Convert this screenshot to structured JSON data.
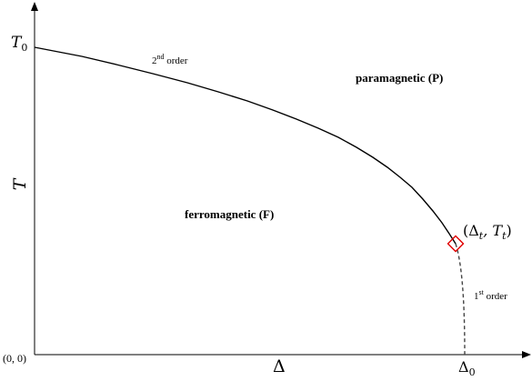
{
  "labels": {
    "t0": "T",
    "t0_sub": "0",
    "y_axis": "T",
    "origin": "(0, 0)",
    "x_axis": "Δ",
    "delta0": "Δ",
    "delta0_sub": "0",
    "second_order_num": "2",
    "second_order_sup": "nd",
    "second_order_text": " order",
    "first_order_num": "1",
    "first_order_sup": "st",
    "first_order_text": " order",
    "paramagnetic": "paramagnetic (P)",
    "ferromagnetic": "ferromagnetic (F)",
    "tricritical_open": "(Δ",
    "tricritical_sub_t": "t",
    "tricritical_comma": ", T",
    "tricritical_sub_t2": "t",
    "tricritical_close": ")"
  },
  "colors": {
    "line": "#000000",
    "marker": "#e00000",
    "dashed": "#444444"
  }
}
